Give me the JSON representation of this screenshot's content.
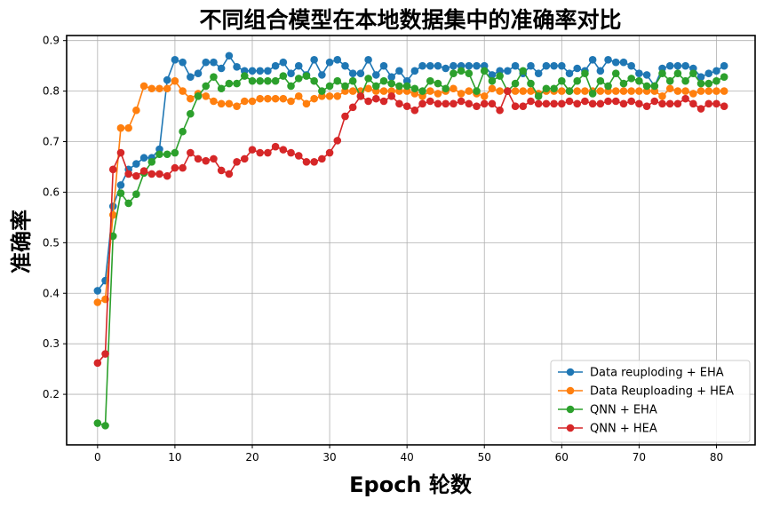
{
  "chart_data": {
    "type": "line",
    "title": "不同组合模型在本地数据集中的准确率对比",
    "xlabel": "Epoch 轮数",
    "ylabel": "准确率",
    "xlim": [
      -4,
      85
    ],
    "ylim": [
      0.1,
      0.91
    ],
    "xticks": [
      0,
      10,
      20,
      30,
      40,
      50,
      60,
      70,
      80
    ],
    "yticks": [
      0.2,
      0.3,
      0.4,
      0.5,
      0.6,
      0.7,
      0.8,
      0.9
    ],
    "grid": true,
    "legend_position": "bottom-right",
    "series": [
      {
        "name": "Data reuploding + EHA",
        "color": "#1f77b4",
        "values": [
          0.405,
          0.425,
          0.572,
          0.614,
          0.645,
          0.656,
          0.668,
          0.668,
          0.685,
          0.822,
          0.862,
          0.857,
          0.828,
          0.835,
          0.857,
          0.857,
          0.845,
          0.87,
          0.848,
          0.84,
          0.84,
          0.84,
          0.84,
          0.85,
          0.857,
          0.835,
          0.85,
          0.832,
          0.862,
          0.832,
          0.857,
          0.862,
          0.85,
          0.835,
          0.835,
          0.862,
          0.832,
          0.85,
          0.828,
          0.84,
          0.82,
          0.84,
          0.85,
          0.85,
          0.85,
          0.845,
          0.85,
          0.85,
          0.85,
          0.85,
          0.85,
          0.832,
          0.84,
          0.84,
          0.85,
          0.835,
          0.85,
          0.835,
          0.85,
          0.85,
          0.85,
          0.835,
          0.845,
          0.84,
          0.862,
          0.84,
          0.862,
          0.857,
          0.857,
          0.85,
          0.835,
          0.832,
          0.81,
          0.845,
          0.85,
          0.85,
          0.85,
          0.845,
          0.828,
          0.835,
          0.84,
          0.85
        ]
      },
      {
        "name": "Data Reuploading + HEA",
        "color": "#ff7f0e",
        "values": [
          0.382,
          0.388,
          0.555,
          0.727,
          0.727,
          0.762,
          0.81,
          0.805,
          0.805,
          0.805,
          0.82,
          0.8,
          0.785,
          0.795,
          0.79,
          0.78,
          0.775,
          0.775,
          0.77,
          0.78,
          0.78,
          0.785,
          0.785,
          0.785,
          0.785,
          0.78,
          0.79,
          0.775,
          0.785,
          0.79,
          0.79,
          0.79,
          0.8,
          0.8,
          0.8,
          0.805,
          0.8,
          0.8,
          0.8,
          0.8,
          0.8,
          0.795,
          0.79,
          0.8,
          0.795,
          0.8,
          0.805,
          0.795,
          0.8,
          0.795,
          0.79,
          0.805,
          0.8,
          0.8,
          0.8,
          0.8,
          0.8,
          0.795,
          0.8,
          0.8,
          0.8,
          0.8,
          0.8,
          0.8,
          0.8,
          0.8,
          0.8,
          0.8,
          0.8,
          0.8,
          0.8,
          0.8,
          0.8,
          0.79,
          0.805,
          0.8,
          0.8,
          0.795,
          0.8,
          0.8,
          0.8,
          0.8
        ]
      },
      {
        "name": "QNN + EHA",
        "color": "#2ca02c",
        "values": [
          0.143,
          0.138,
          0.513,
          0.598,
          0.578,
          0.596,
          0.638,
          0.66,
          0.675,
          0.675,
          0.678,
          0.72,
          0.755,
          0.79,
          0.81,
          0.828,
          0.805,
          0.815,
          0.815,
          0.83,
          0.82,
          0.82,
          0.82,
          0.82,
          0.83,
          0.81,
          0.825,
          0.83,
          0.82,
          0.8,
          0.81,
          0.82,
          0.81,
          0.82,
          0.79,
          0.825,
          0.81,
          0.82,
          0.815,
          0.81,
          0.81,
          0.805,
          0.8,
          0.82,
          0.815,
          0.805,
          0.835,
          0.84,
          0.835,
          0.8,
          0.84,
          0.82,
          0.83,
          0.8,
          0.815,
          0.84,
          0.815,
          0.79,
          0.805,
          0.805,
          0.82,
          0.8,
          0.82,
          0.835,
          0.795,
          0.82,
          0.81,
          0.835,
          0.815,
          0.825,
          0.82,
          0.81,
          0.81,
          0.835,
          0.82,
          0.835,
          0.82,
          0.835,
          0.815,
          0.815,
          0.82,
          0.828
        ]
      },
      {
        "name": "QNN + HEA",
        "color": "#d62728",
        "values": [
          0.262,
          0.28,
          0.645,
          0.678,
          0.636,
          0.632,
          0.642,
          0.636,
          0.636,
          0.632,
          0.648,
          0.648,
          0.678,
          0.666,
          0.662,
          0.666,
          0.643,
          0.636,
          0.66,
          0.666,
          0.684,
          0.678,
          0.678,
          0.69,
          0.684,
          0.678,
          0.672,
          0.66,
          0.66,
          0.666,
          0.678,
          0.702,
          0.75,
          0.768,
          0.79,
          0.78,
          0.785,
          0.78,
          0.79,
          0.775,
          0.77,
          0.762,
          0.775,
          0.78,
          0.775,
          0.775,
          0.775,
          0.78,
          0.775,
          0.77,
          0.775,
          0.775,
          0.762,
          0.8,
          0.77,
          0.77,
          0.78,
          0.775,
          0.775,
          0.775,
          0.775,
          0.78,
          0.775,
          0.78,
          0.775,
          0.775,
          0.78,
          0.78,
          0.775,
          0.78,
          0.775,
          0.77,
          0.78,
          0.775,
          0.775,
          0.775,
          0.785,
          0.775,
          0.765,
          0.775,
          0.775,
          0.77
        ]
      }
    ]
  }
}
